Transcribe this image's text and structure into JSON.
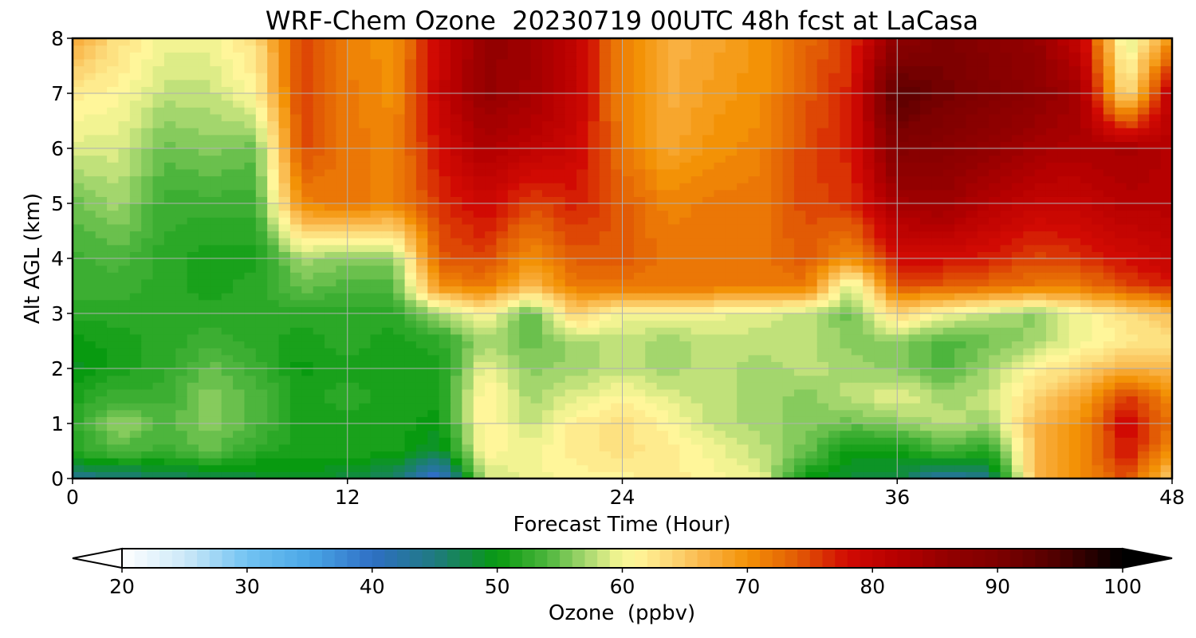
{
  "title": "WRF-Chem Ozone  20230719 00UTC 48h fcst at LaCasa",
  "chart_data": {
    "type": "heatmap",
    "title": "WRF-Chem Ozone  20230719 00UTC 48h fcst at LaCasa",
    "xlabel": "Forecast Time (Hour)",
    "ylabel": "Alt AGL (km)",
    "xlim": [
      0,
      48
    ],
    "ylim": [
      0,
      8
    ],
    "xticks": [
      0,
      12,
      24,
      36,
      48
    ],
    "yticks": [
      0,
      1,
      2,
      3,
      4,
      5,
      6,
      7,
      8
    ],
    "grid": true,
    "x": [
      0,
      2,
      4,
      6,
      8,
      10,
      12,
      14,
      16,
      18,
      20,
      22,
      24,
      26,
      28,
      30,
      32,
      34,
      36,
      38,
      40,
      42,
      44,
      46,
      48
    ],
    "y": [
      0,
      0.5,
      1,
      1.5,
      2,
      2.5,
      3,
      3.5,
      4,
      5,
      6,
      7,
      8
    ],
    "values": [
      [
        44,
        45,
        46,
        47,
        48,
        49,
        48,
        46,
        38,
        58,
        60,
        61,
        61,
        62,
        61,
        60,
        50,
        48,
        48,
        42,
        45,
        66,
        70,
        75,
        64
      ],
      [
        52,
        54,
        53,
        55,
        52,
        51,
        51,
        51,
        48,
        61,
        60,
        62,
        63,
        62,
        60,
        58,
        55,
        50,
        50,
        54,
        51,
        66,
        70,
        78,
        70
      ],
      [
        52,
        57,
        54,
        56,
        54,
        51,
        51,
        51,
        50,
        62,
        58,
        62,
        63,
        61,
        58,
        57,
        56,
        55,
        56,
        58,
        57,
        66,
        70,
        79,
        72
      ],
      [
        51,
        53,
        53,
        56,
        54,
        51,
        52,
        51,
        51,
        62,
        57,
        59,
        61,
        59,
        58,
        57,
        56,
        58,
        60,
        57,
        58,
        64,
        68,
        76,
        70
      ],
      [
        49,
        51,
        52,
        55,
        53,
        50,
        51,
        51,
        51,
        60,
        56,
        57,
        58,
        57,
        58,
        57,
        58,
        57,
        56,
        54,
        57,
        61,
        64,
        67,
        66
      ],
      [
        50,
        51,
        52,
        53,
        52,
        51,
        52,
        51,
        52,
        57,
        55,
        57,
        58,
        57,
        58,
        58,
        58,
        56,
        56,
        54,
        55,
        57,
        60,
        62,
        63
      ],
      [
        52,
        52,
        52,
        52,
        52,
        52,
        52,
        52,
        57,
        61,
        54,
        65,
        60,
        60,
        60,
        59,
        58,
        55,
        64,
        60,
        58,
        56,
        60,
        63,
        66
      ],
      [
        53,
        53,
        52,
        51,
        52,
        55,
        54,
        54,
        70,
        72,
        66,
        72,
        72,
        72,
        72,
        72,
        72,
        58,
        74,
        74,
        73,
        72,
        72,
        75,
        77
      ],
      [
        53,
        54,
        52,
        51,
        51,
        57,
        56,
        56,
        74,
        75,
        70,
        74,
        74,
        72,
        72,
        72,
        74,
        70,
        78,
        78,
        77,
        75,
        76,
        78,
        80
      ],
      [
        55,
        57,
        53,
        53,
        53,
        71,
        72,
        71,
        76,
        79,
        75,
        77,
        74,
        71,
        72,
        72,
        75,
        76,
        84,
        85,
        82,
        80,
        80,
        82,
        82
      ],
      [
        59,
        59,
        55,
        56,
        55,
        75,
        72,
        71,
        78,
        83,
        81,
        79,
        72,
        68,
        70,
        71,
        75,
        77,
        89,
        88,
        86,
        84,
        83,
        84,
        82
      ],
      [
        62,
        61,
        58,
        58,
        61,
        76,
        72,
        70,
        80,
        86,
        84,
        80,
        71,
        67,
        69,
        70,
        74,
        77,
        94,
        91,
        89,
        87,
        84,
        62,
        82
      ],
      [
        68,
        63,
        60,
        60,
        63,
        76,
        71,
        70,
        79,
        86,
        85,
        80,
        71,
        67,
        68,
        70,
        73,
        76,
        87,
        90,
        88,
        86,
        80,
        58,
        70
      ]
    ],
    "colorbar": {
      "label": "Ozone  (ppbv)",
      "min": 20,
      "max": 100,
      "ticks": [
        20,
        30,
        40,
        50,
        60,
        70,
        80,
        90,
        100
      ],
      "extend": "both",
      "orientation": "horizontal",
      "colors": [
        [
          20,
          "#ffffff"
        ],
        [
          25,
          "#cde9f8"
        ],
        [
          30,
          "#72c3f2"
        ],
        [
          35,
          "#4aa6e6"
        ],
        [
          40,
          "#2f6fc5"
        ],
        [
          45,
          "#1f7a80"
        ],
        [
          50,
          "#089a10"
        ],
        [
          54,
          "#4db53d"
        ],
        [
          57,
          "#a3d66d"
        ],
        [
          59.5,
          "#ecf28e"
        ],
        [
          61,
          "#fff69a"
        ],
        [
          64,
          "#fcd675"
        ],
        [
          67,
          "#f9b040"
        ],
        [
          70,
          "#f39206"
        ],
        [
          74,
          "#e25b05"
        ],
        [
          78,
          "#d10a03"
        ],
        [
          82,
          "#b60000"
        ],
        [
          86,
          "#930000"
        ],
        [
          90,
          "#7e0000"
        ],
        [
          95,
          "#4d0000"
        ],
        [
          100,
          "#000000"
        ]
      ]
    }
  }
}
